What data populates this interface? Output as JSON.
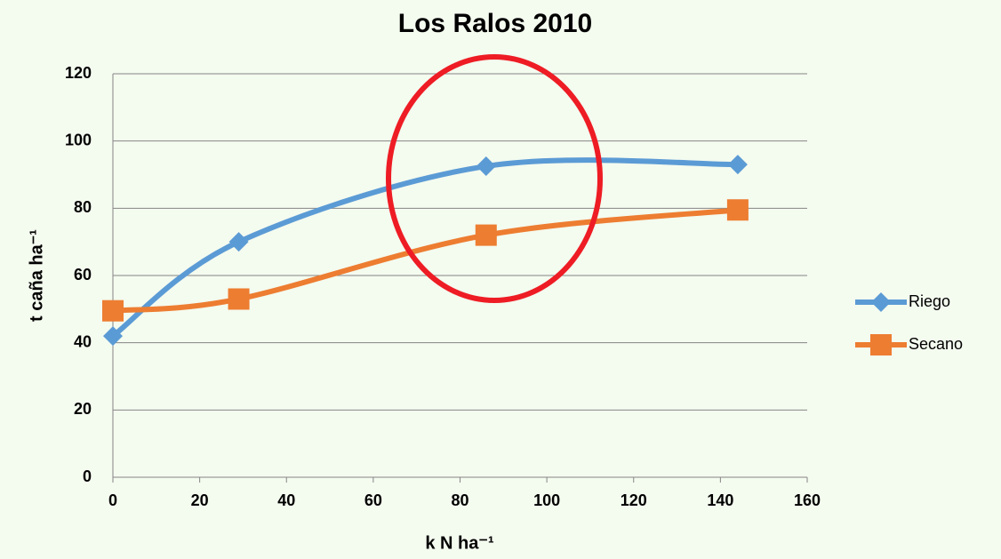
{
  "chart_data": {
    "type": "line",
    "title": "Los Ralos 2010",
    "x_label": "k N ha⁻¹",
    "y_label": "t caña ha⁻¹",
    "x": [
      0,
      29,
      86,
      144
    ],
    "series": [
      {
        "name": "Riego",
        "color": "#5b9bd5",
        "marker": "diamond",
        "values": [
          42,
          70,
          92.5,
          93
        ]
      },
      {
        "name": "Secano",
        "color": "#ed7d31",
        "marker": "square",
        "values": [
          49.5,
          53,
          72,
          79.5
        ]
      }
    ],
    "xlim": [
      0,
      160
    ],
    "xticks": [
      0,
      20,
      40,
      60,
      80,
      100,
      120,
      140,
      160
    ],
    "ylim": [
      0,
      120
    ],
    "yticks": [
      0,
      20,
      40,
      60,
      80,
      100,
      120
    ],
    "grid": true,
    "smooth": true,
    "legend": "right"
  }
}
